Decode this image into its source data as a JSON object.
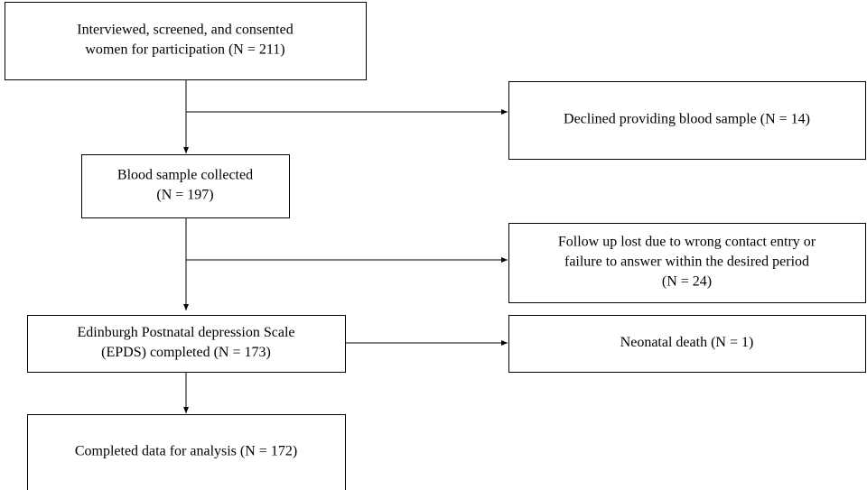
{
  "nodes": [
    {
      "lines": [
        "Interviewed, screened, and consented",
        "women for participation (N = 211)"
      ]
    },
    {
      "lines": [
        "Declined providing blood sample (N = 14)"
      ]
    },
    {
      "lines": [
        "Blood sample collected",
        "(N = 197)"
      ]
    },
    {
      "lines": [
        "Follow up lost due to wrong contact entry or",
        "failure to answer within the desired period",
        "(N = 24)"
      ]
    },
    {
      "lines": [
        "Edinburgh Postnatal depression Scale",
        "(EPDS) completed (N = 173)"
      ]
    },
    {
      "lines": [
        "Neonatal death (N = 1)"
      ]
    },
    {
      "lines": [
        "Completed data for analysis (N = 172)"
      ]
    }
  ]
}
